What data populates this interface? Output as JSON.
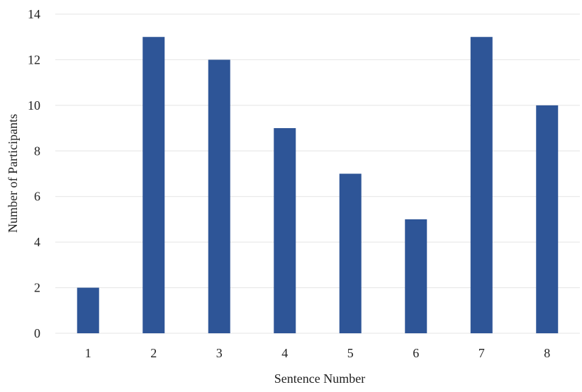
{
  "chart_data": {
    "type": "bar",
    "categories": [
      "1",
      "2",
      "3",
      "4",
      "5",
      "6",
      "7",
      "8"
    ],
    "values": [
      2,
      13,
      12,
      9,
      7,
      5,
      13,
      10
    ],
    "title": "",
    "xlabel": "Sentence Number",
    "ylabel": "Number of Participants",
    "ylim": [
      0,
      14
    ],
    "yticks": [
      "0",
      "2",
      "4",
      "6",
      "8",
      "10",
      "12",
      "14"
    ],
    "grid": true,
    "legend": "none",
    "bar_color": "#2e5597",
    "grid_color": "#e4e4e4"
  }
}
